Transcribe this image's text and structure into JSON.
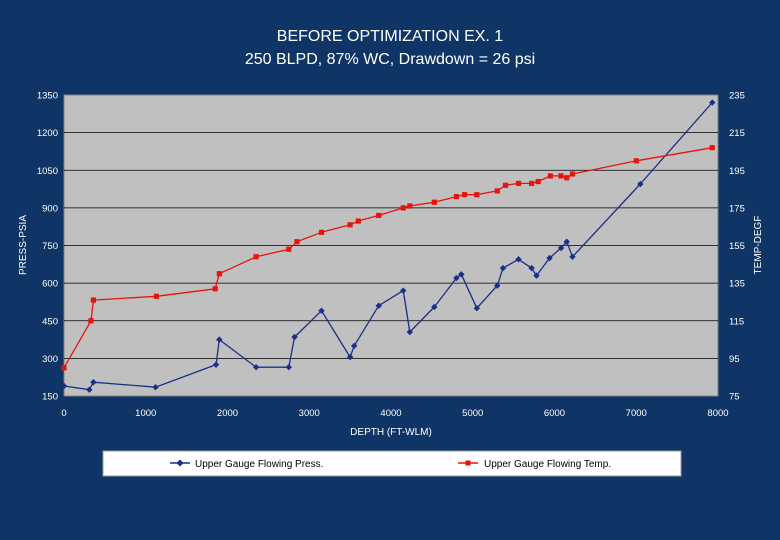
{
  "chart_data": {
    "type": "line",
    "title": "BEFORE OPTIMIZATION EX. 1",
    "subtitle": "250 BLPD, 87% WC, Drawdown = 26 psi",
    "xlabel": "DEPTH (FT-WLM)",
    "ylabel_left": "PRESS-PSIA",
    "ylabel_right": "TEMP-DEGF",
    "xlim": [
      0,
      8000
    ],
    "ylim_left": [
      150,
      1350
    ],
    "ylim_right": [
      75,
      235
    ],
    "x_ticks": [
      "0",
      "1000",
      "2000",
      "3000",
      "4000",
      "5000",
      "6000",
      "7000",
      "8000"
    ],
    "y_left_ticks": [
      "150",
      "300",
      "450",
      "600",
      "750",
      "900",
      "1050",
      "1200",
      "1350"
    ],
    "y_right_ticks": [
      "75",
      "95",
      "115",
      "135",
      "155",
      "175",
      "195",
      "215",
      "235"
    ],
    "grid": "horizontal",
    "legend_position": "bottom",
    "series": [
      {
        "name": "Upper Gauge Flowing Press.",
        "axis": "left",
        "color": "#1a2f86",
        "marker": "diamond",
        "x": [
          0,
          310,
          360,
          1120,
          1860,
          1900,
          2350,
          2750,
          2820,
          3150,
          3500,
          3550,
          3850,
          4150,
          4230,
          4530,
          4800,
          4860,
          5050,
          5300,
          5370,
          5560,
          5720,
          5780,
          5940,
          6080,
          6150,
          6220,
          7050,
          7930
        ],
        "y": [
          190,
          175,
          205,
          185,
          275,
          375,
          265,
          265,
          385,
          490,
          305,
          350,
          510,
          570,
          405,
          505,
          620,
          635,
          500,
          590,
          660,
          695,
          660,
          630,
          700,
          740,
          765,
          705,
          995,
          1320
        ]
      },
      {
        "name": "Upper Gauge Flowing Temp.",
        "axis": "right",
        "color": "#e8140c",
        "marker": "square",
        "x": [
          0,
          330,
          360,
          1130,
          1850,
          1900,
          2350,
          2750,
          2850,
          3150,
          3500,
          3600,
          3850,
          4150,
          4230,
          4530,
          4800,
          4900,
          5050,
          5300,
          5400,
          5560,
          5720,
          5800,
          5950,
          6080,
          6150,
          6220,
          7000,
          7930
        ],
        "y": [
          90,
          115,
          126,
          128,
          132,
          140,
          149,
          153,
          157,
          162,
          166,
          168,
          171,
          175,
          176,
          178,
          181,
          182,
          182,
          184,
          187,
          188,
          188,
          189,
          192,
          192,
          191,
          193,
          200,
          207
        ]
      }
    ]
  }
}
